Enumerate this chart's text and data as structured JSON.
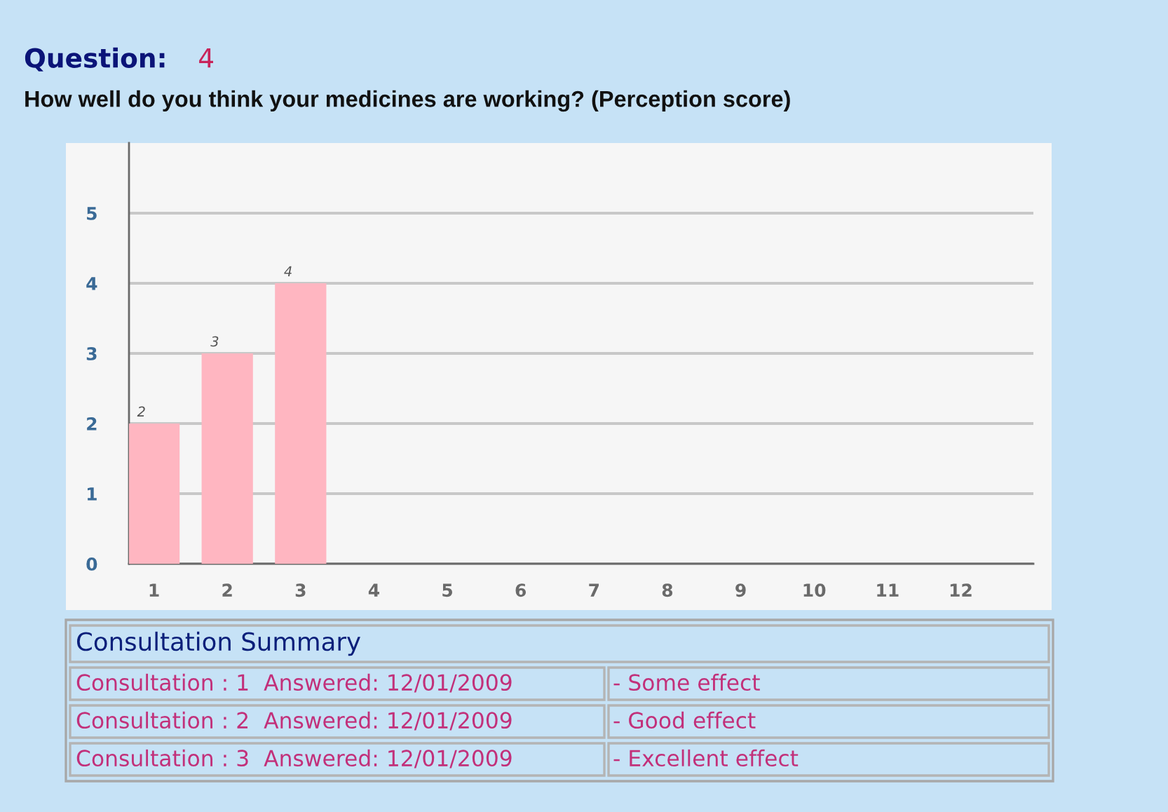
{
  "chart_data": {
    "type": "bar",
    "title": "Question: 4",
    "subtitle": "How well do you think your medicines are working? (Perception score)",
    "categories": [
      "1",
      "2",
      "3",
      "4",
      "5",
      "6",
      "7",
      "8",
      "9",
      "10",
      "11",
      "12"
    ],
    "values": [
      2,
      3,
      4,
      null,
      null,
      null,
      null,
      null,
      null,
      null,
      null,
      null
    ],
    "color": "#ffb6c1",
    "ylim": [
      0,
      6
    ],
    "yticks": [
      0,
      1,
      2,
      3,
      4,
      5
    ],
    "grid": "y",
    "data_labels": true,
    "annotations": [
      "Consultation Summary",
      "Consultation : 1  Answered: 12/01/2009",
      "- Some effect",
      "Consultation : 2  Answered: 12/01/2009",
      "- Good effect",
      "Consultation : 3  Answered: 12/01/2009",
      "- Excellent effect"
    ]
  }
}
